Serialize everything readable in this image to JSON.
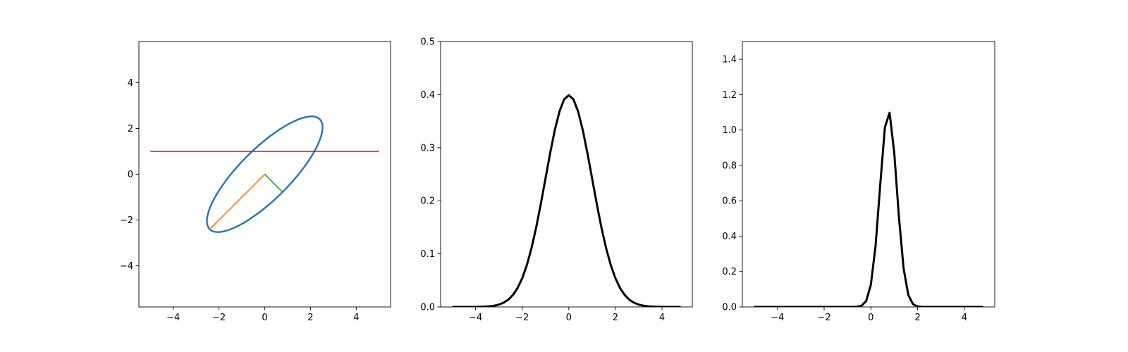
{
  "chart_data": [
    {
      "type": "line",
      "title": "",
      "xlabel": "",
      "ylabel": "",
      "xlim": [
        -5.5,
        5.5
      ],
      "ylim": [
        -5.8,
        5.8
      ],
      "xticks": [
        -4,
        -2,
        0,
        2,
        4
      ],
      "yticks": [
        -4,
        -2,
        0,
        2,
        4
      ],
      "tick_labels_x": [
        "−4",
        "−2",
        "0",
        "2",
        "4"
      ],
      "tick_labels_y": [
        "−4",
        "−2",
        "0",
        "2",
        "4"
      ],
      "grid": false,
      "series": [
        {
          "name": "covariance ellipse",
          "color": "#1f77b4",
          "kind": "ellipse",
          "center": [
            0,
            0
          ],
          "major_radius": 3.4,
          "minor_radius": 1.1,
          "angle_deg": 45
        },
        {
          "name": "major axis",
          "color": "#ff7f0e",
          "x": [
            0,
            -2.4
          ],
          "y": [
            0,
            -2.4
          ]
        },
        {
          "name": "minor axis",
          "color": "#2ca02c",
          "x": [
            0,
            0.78
          ],
          "y": [
            0,
            -0.78
          ]
        },
        {
          "name": "conditioning line",
          "color": "#ff0000",
          "x": [
            -5,
            5
          ],
          "y": [
            1,
            1
          ]
        }
      ]
    },
    {
      "type": "line",
      "title": "",
      "xlabel": "",
      "ylabel": "",
      "xlim": [
        -5.5,
        5.3
      ],
      "ylim": [
        0,
        0.5
      ],
      "xticks": [
        -4,
        -2,
        0,
        2,
        4
      ],
      "yticks": [
        0.0,
        0.1,
        0.2,
        0.3,
        0.4,
        0.5
      ],
      "tick_labels_x": [
        "−4",
        "−2",
        "0",
        "2",
        "4"
      ],
      "tick_labels_y": [
        "0.0",
        "0.1",
        "0.2",
        "0.3",
        "0.4",
        "0.5"
      ],
      "grid": false,
      "series": [
        {
          "name": "marginal density",
          "color": "#000000",
          "kind": "gaussian",
          "mean": 0.0,
          "sd": 1.0,
          "x_range": [
            -5,
            4.8
          ],
          "step": 0.2
        }
      ]
    },
    {
      "type": "line",
      "title": "",
      "xlabel": "",
      "ylabel": "",
      "xlim": [
        -5.5,
        5.3
      ],
      "ylim": [
        0,
        1.5
      ],
      "xticks": [
        -4,
        -2,
        0,
        2,
        4
      ],
      "yticks": [
        0.0,
        0.2,
        0.4,
        0.6,
        0.8,
        1.0,
        1.2,
        1.4
      ],
      "tick_labels_x": [
        "−4",
        "−2",
        "0",
        "2",
        "4"
      ],
      "tick_labels_y": [
        "0.0",
        "0.2",
        "0.4",
        "0.6",
        "0.8",
        "1.0",
        "1.2",
        "1.4"
      ],
      "grid": false,
      "series": [
        {
          "name": "conditional density",
          "color": "#000000",
          "kind": "gaussian",
          "mean": 0.75,
          "sd": 0.36,
          "x_range": [
            -5,
            4.8
          ],
          "step": 0.2
        }
      ]
    }
  ]
}
